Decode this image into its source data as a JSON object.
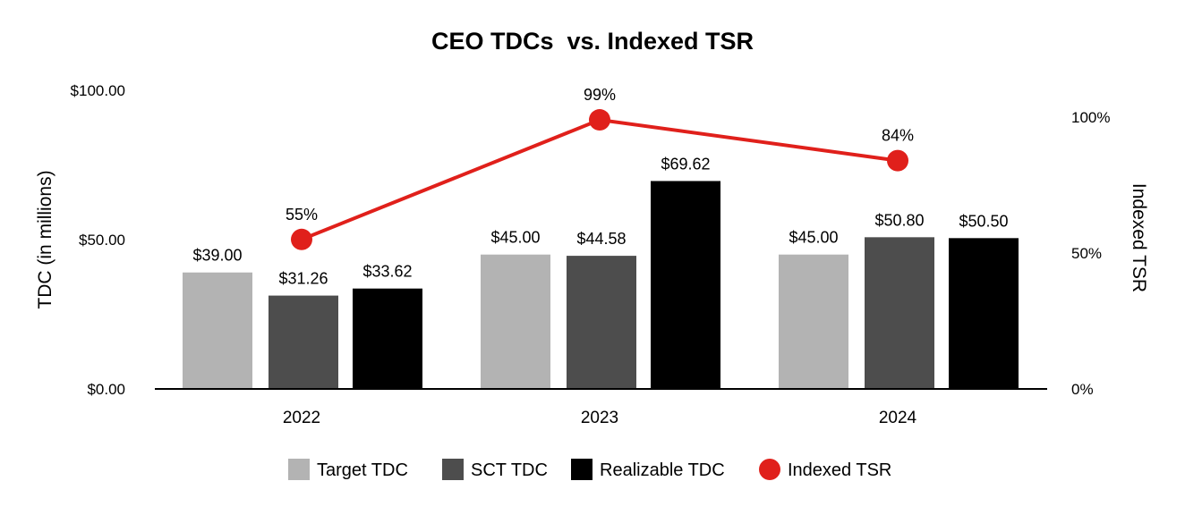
{
  "chart_data": {
    "type": "bar",
    "title": "CEO TDCs  vs. Indexed TSR",
    "categories": [
      "2022",
      "2023",
      "2024"
    ],
    "ylabel": "TDC (in millions)",
    "y2label": "Indexed TSR",
    "ylim": [
      0,
      100
    ],
    "y2lim": [
      0,
      110
    ],
    "yticks": [
      "$0.00",
      "$50.00",
      "$100.00"
    ],
    "yticks_values": [
      0,
      50,
      100
    ],
    "y2ticks": [
      "0%",
      "50%",
      "100%"
    ],
    "y2ticks_values": [
      0,
      50,
      100
    ],
    "series": [
      {
        "name": "Target TDC",
        "kind": "bar",
        "color": "#b3b3b3",
        "values": [
          39.0,
          45.0,
          45.0
        ],
        "labels": [
          "$39.00",
          "$45.00",
          "$45.00"
        ]
      },
      {
        "name": "SCT TDC",
        "kind": "bar",
        "color": "#4d4d4d",
        "values": [
          31.26,
          44.58,
          50.8
        ],
        "labels": [
          "$31.26",
          "$44.58",
          "$50.80"
        ]
      },
      {
        "name": "Realizable TDC",
        "kind": "bar",
        "color": "#000000",
        "values": [
          33.62,
          69.62,
          50.5
        ],
        "labels": [
          "$33.62",
          "$69.62",
          "$50.50"
        ]
      },
      {
        "name": "Indexed TSR",
        "kind": "line",
        "axis": "right",
        "color": "#e0201b",
        "values": [
          55,
          99,
          84
        ],
        "labels": [
          "55%",
          "99%",
          "84%"
        ]
      }
    ],
    "grid": false,
    "legend_position": "bottom"
  }
}
